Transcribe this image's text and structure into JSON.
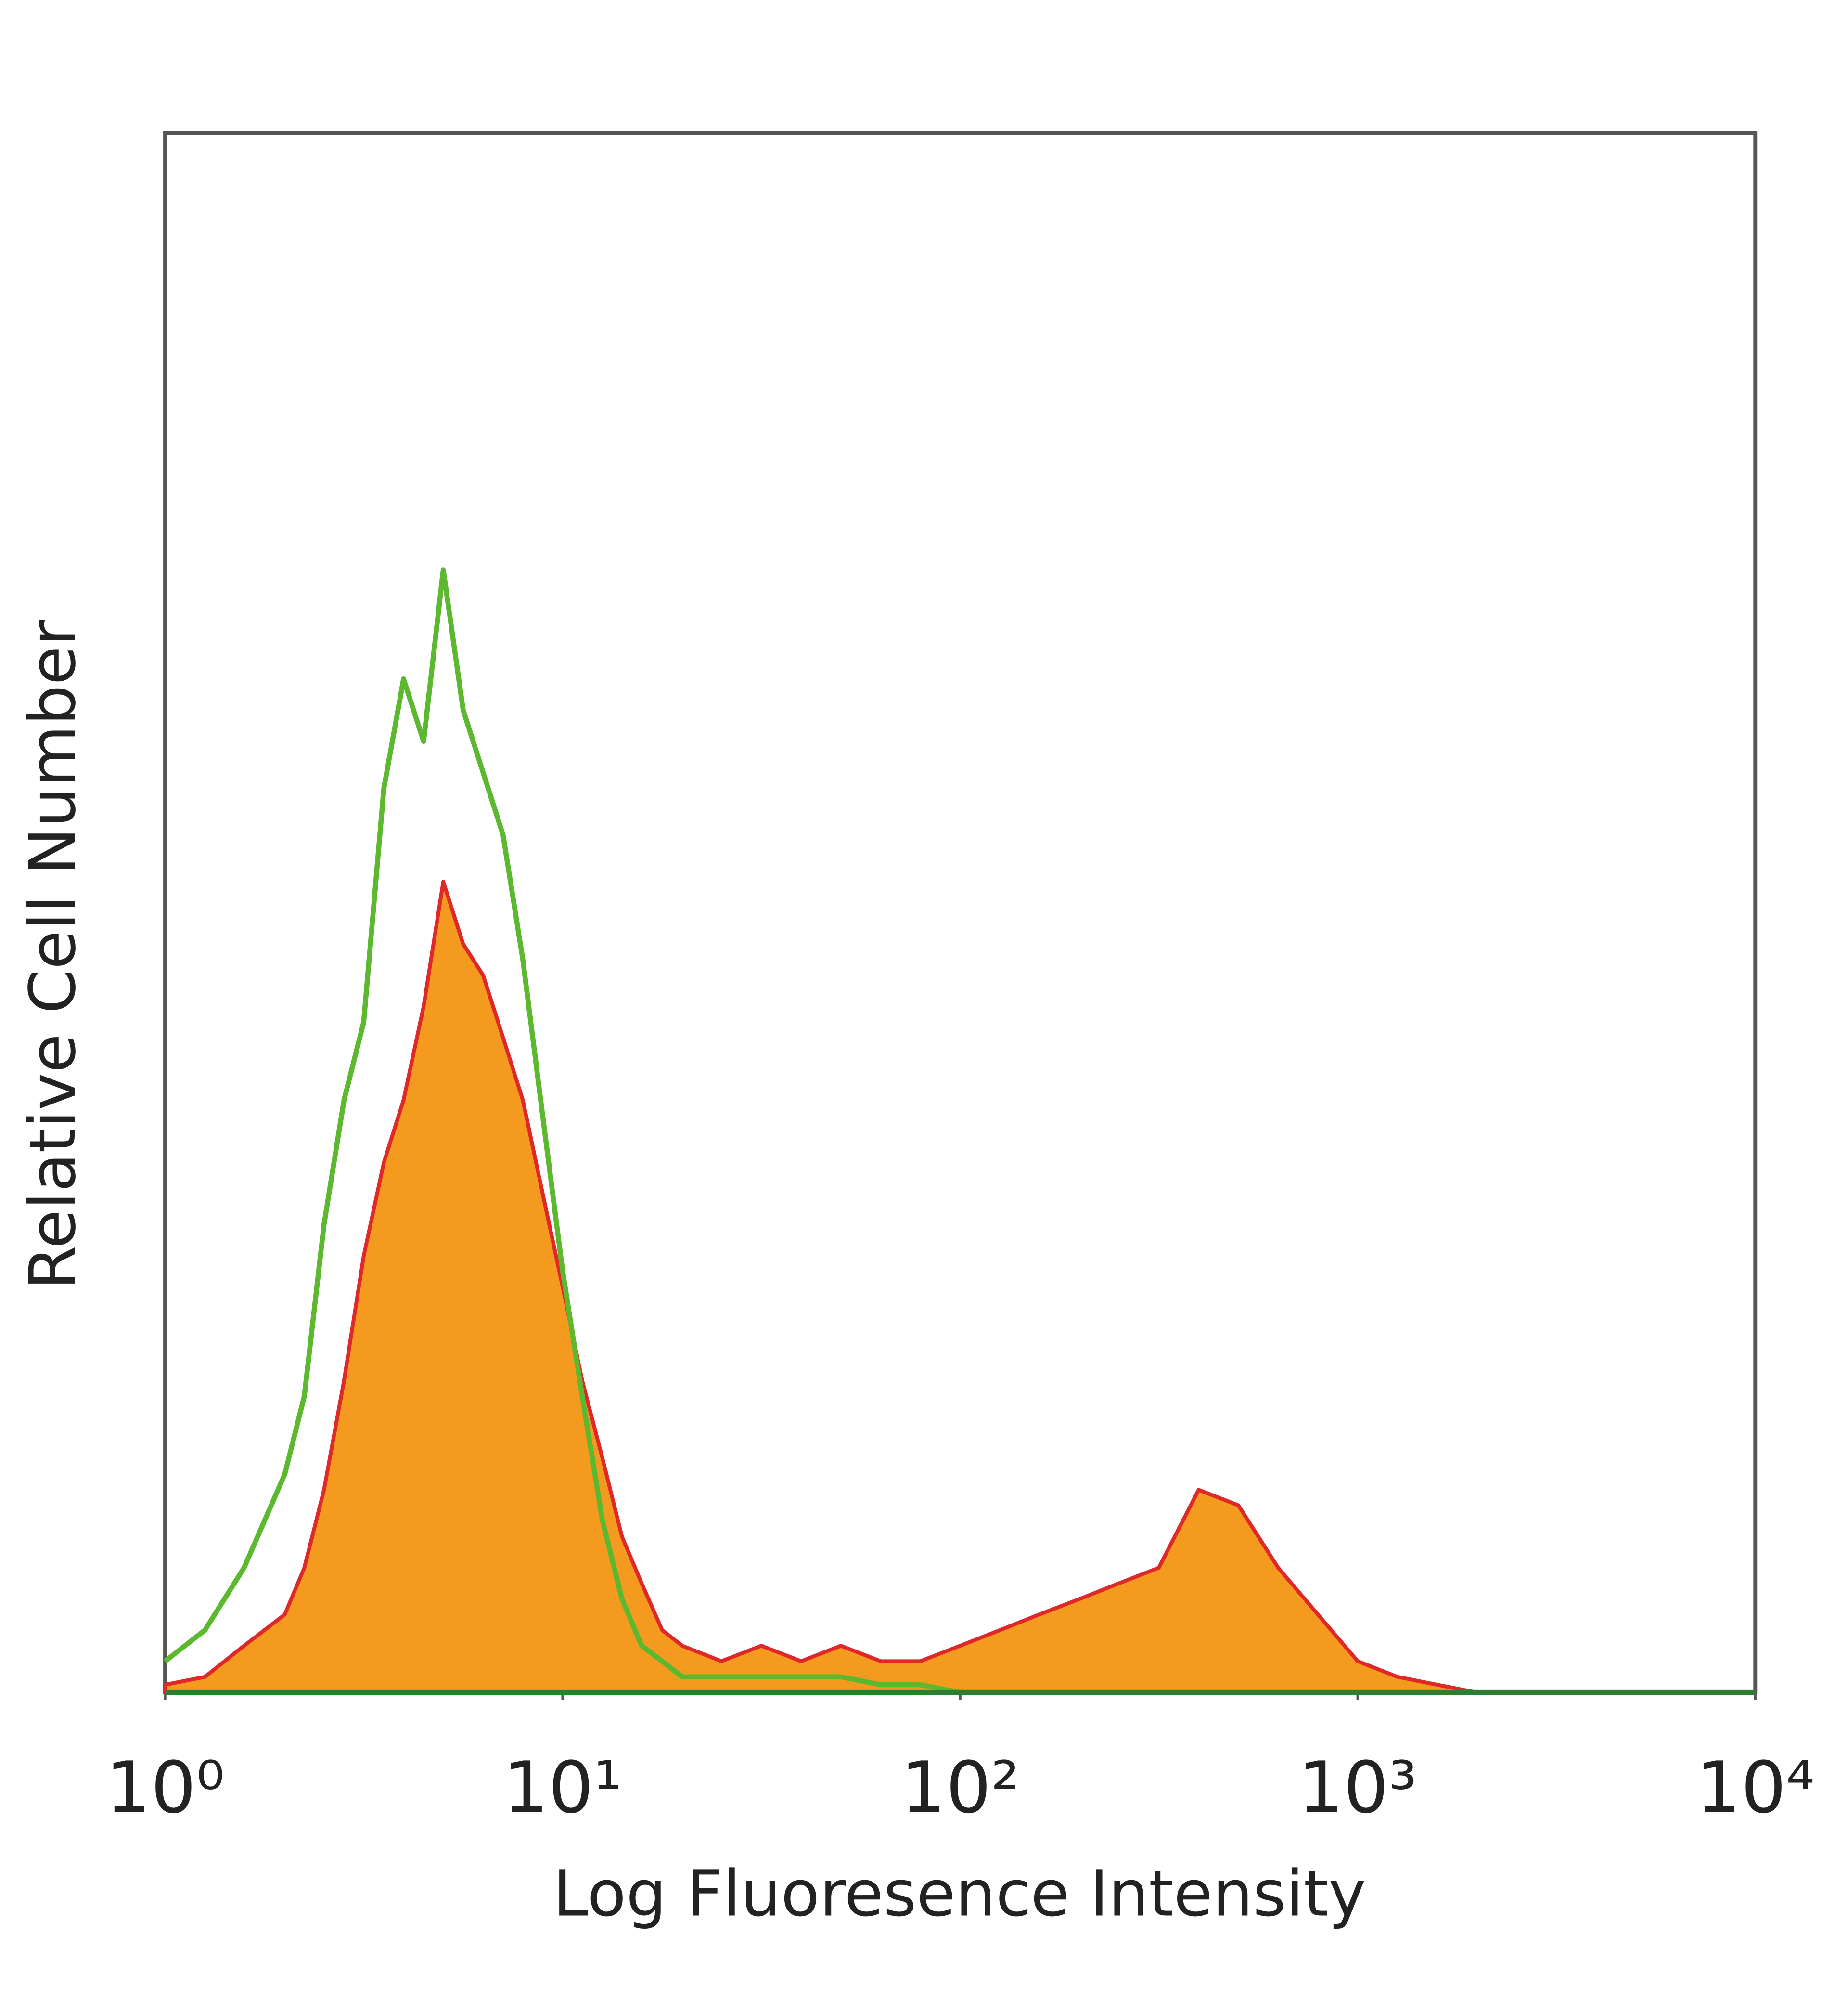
{
  "chart_data": {
    "type": "histogram-overlay",
    "xlabel": "Log Fluoresence Intensity",
    "ylabel": "Relative Cell Number",
    "xscale": "log",
    "xlim": [
      1,
      10000
    ],
    "xticks": [
      {
        "value": 1,
        "label": "10⁰"
      },
      {
        "value": 10,
        "label": "10¹"
      },
      {
        "value": 100,
        "label": "10²"
      },
      {
        "value": 1000,
        "label": "10³"
      },
      {
        "value": 10000,
        "label": "10⁴"
      }
    ],
    "ylim": [
      0,
      100
    ],
    "x": [
      1,
      1.26,
      1.58,
      2,
      2.24,
      2.51,
      2.82,
      3.16,
      3.55,
      3.98,
      4.47,
      5.01,
      5.62,
      6.31,
      7.08,
      7.94,
      8.91,
      10,
      11.2,
      12.6,
      14.1,
      15.8,
      17.8,
      20,
      25.1,
      31.6,
      39.8,
      50.1,
      63.1,
      79.4,
      100,
      126,
      158,
      200,
      251,
      316,
      398,
      501,
      631,
      794,
      1000,
      1259,
      1585,
      1995
    ],
    "series": [
      {
        "color": "#f39a1f",
        "edge_color": "#e02828",
        "filled": true,
        "values": [
          0.5,
          1,
          3,
          5,
          8,
          13,
          20,
          28,
          34,
          38,
          44,
          52,
          48,
          46,
          42,
          38,
          32,
          26,
          20,
          15,
          10,
          7,
          4,
          3,
          2,
          3,
          2,
          3,
          2,
          2,
          3,
          4,
          5,
          6,
          7,
          8,
          13,
          12,
          8,
          5,
          2,
          1,
          0.5,
          0
        ]
      },
      {
        "color": "#5cb82e",
        "filled": false,
        "values": [
          2,
          4,
          8,
          14,
          19,
          30,
          38,
          43,
          58,
          65,
          61,
          72,
          63,
          59,
          55,
          47,
          37,
          27,
          19,
          11,
          6,
          3,
          2,
          1,
          1,
          1,
          1,
          1,
          0.5,
          0.5,
          0,
          0,
          0,
          0,
          0,
          0,
          0,
          0,
          0,
          0,
          0,
          0,
          0,
          0
        ]
      }
    ]
  }
}
